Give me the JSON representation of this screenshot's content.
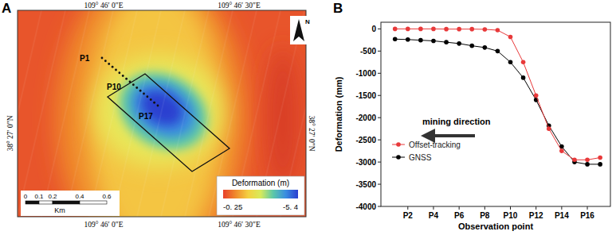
{
  "panels": [
    "A",
    "B"
  ],
  "map": {
    "lon_labels": [
      "109° 46′ 0″E",
      "109° 46′ 30″E"
    ],
    "lat_label": "38° 27′ 0″N",
    "north": "N",
    "points": [
      "P1",
      "P10",
      "P17"
    ],
    "scale": {
      "labels": [
        "0",
        "0.1",
        "0.2",
        "0.4",
        "0.6"
      ],
      "unit": "Km"
    },
    "colorbar": {
      "title": "Deformation (m)",
      "labels": [
        "-0. 25",
        "-5. 4"
      ]
    }
  },
  "chart_data": {
    "type": "line",
    "xlabel": "Observation point",
    "ylabel": "Deformation (mm)",
    "annotation": "mining direction",
    "categories": [
      null,
      "P2",
      null,
      "P4",
      null,
      "P6",
      null,
      "P8",
      null,
      "P10",
      null,
      "P12",
      null,
      "P14",
      null,
      "P16",
      null
    ],
    "series": [
      {
        "name": "Offset-tracking",
        "color": "#e8393a",
        "marker": "circle",
        "values": [
          0,
          0,
          0,
          0,
          -5,
          -5,
          -5,
          -10,
          -30,
          -180,
          -750,
          -1500,
          -2250,
          -2750,
          -2950,
          -2950,
          -2900
        ]
      },
      {
        "name": "GNSS",
        "color": "#000000",
        "marker": "circle",
        "values": [
          -230,
          -240,
          -255,
          -270,
          -300,
          -330,
          -380,
          -420,
          -500,
          -750,
          -1100,
          -1600,
          -2180,
          -2650,
          -3000,
          -3050,
          -3050
        ]
      }
    ],
    "ylim": [
      -4000,
      150
    ],
    "yticks": [
      -4000,
      -3500,
      -3000,
      -2500,
      -2000,
      -1500,
      -1000,
      -500,
      0
    ],
    "legend": "lower left"
  }
}
